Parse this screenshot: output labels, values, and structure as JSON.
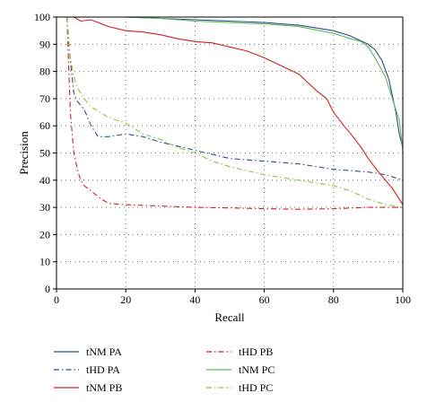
{
  "chart_data": {
    "type": "line",
    "title": "",
    "xlabel": "Recall",
    "ylabel": "Precision",
    "xlim": [
      0,
      100
    ],
    "ylim": [
      0,
      100
    ],
    "xticks": [
      0,
      20,
      40,
      60,
      80,
      100
    ],
    "yticks": [
      0,
      10,
      20,
      30,
      40,
      50,
      60,
      70,
      80,
      90,
      100
    ],
    "grid": true,
    "legend_position": "bottom",
    "series": [
      {
        "name": "tNM PA",
        "color": "#2f4f8f",
        "dash": "solid",
        "x": [
          3,
          5,
          10,
          20,
          30,
          40,
          50,
          60,
          70,
          80,
          85,
          90,
          92,
          94,
          96,
          98,
          99,
          100
        ],
        "y": [
          100,
          100,
          100,
          100,
          99.5,
          99,
          98.5,
          98,
          97,
          95,
          93,
          90,
          88,
          84,
          77,
          65,
          57,
          52
        ]
      },
      {
        "name": "tHD PA",
        "color": "#2f4f8f",
        "dash": "dashdot",
        "x": [
          3,
          4,
          5,
          6,
          8,
          10,
          12,
          15,
          20,
          25,
          30,
          40,
          50,
          60,
          70,
          80,
          90,
          95,
          100
        ],
        "y": [
          100,
          84,
          72,
          69,
          66,
          60,
          56,
          56,
          57,
          56,
          54,
          51,
          48,
          47,
          46,
          44,
          43,
          42,
          40
        ]
      },
      {
        "name": "tNM PB",
        "color": "#d02020",
        "dash": "solid",
        "x": [
          3,
          5,
          7,
          10,
          15,
          20,
          25,
          30,
          35,
          40,
          45,
          50,
          55,
          60,
          65,
          70,
          75,
          78,
          80,
          83,
          85,
          88,
          90,
          93,
          95,
          97,
          100
        ],
        "y": [
          100,
          100,
          98.5,
          99,
          96.5,
          95,
          94.5,
          93.5,
          92,
          91,
          90.5,
          89,
          87.5,
          85,
          82,
          79,
          73,
          70,
          65,
          60,
          57,
          52,
          48,
          43,
          40,
          37,
          31
        ]
      },
      {
        "name": "tHD PB",
        "color": "#d02020",
        "dash": "dashdot",
        "x": [
          3,
          4,
          5,
          6,
          7,
          8,
          10,
          13,
          15,
          20,
          30,
          40,
          50,
          60,
          70,
          80,
          90,
          100
        ],
        "y": [
          100,
          65,
          50,
          44,
          40,
          38,
          36,
          33,
          31.5,
          31,
          30.5,
          30,
          29.8,
          29.5,
          29.3,
          29.5,
          30,
          30
        ]
      },
      {
        "name": "tNM PC",
        "color": "#5cb85c",
        "dash": "solid",
        "x": [
          3,
          10,
          20,
          30,
          40,
          50,
          60,
          70,
          80,
          85,
          88,
          90,
          92,
          95,
          97,
          99,
          100
        ],
        "y": [
          100,
          100,
          100,
          99.5,
          98.5,
          98,
          97.5,
          96.5,
          94,
          92,
          91,
          89,
          85,
          78,
          70,
          62,
          51
        ]
      },
      {
        "name": "tHD PC",
        "color": "#8cc63f",
        "dash": "dashdot",
        "x": [
          3,
          4,
          5,
          6,
          8,
          10,
          15,
          20,
          25,
          30,
          35,
          40,
          45,
          50,
          60,
          70,
          80,
          85,
          90,
          95,
          100
        ],
        "y": [
          100,
          85,
          78,
          74,
          70,
          67,
          63,
          61,
          57,
          55,
          52,
          50,
          47,
          45,
          42,
          40,
          38,
          36,
          33,
          31,
          30
        ]
      }
    ]
  }
}
